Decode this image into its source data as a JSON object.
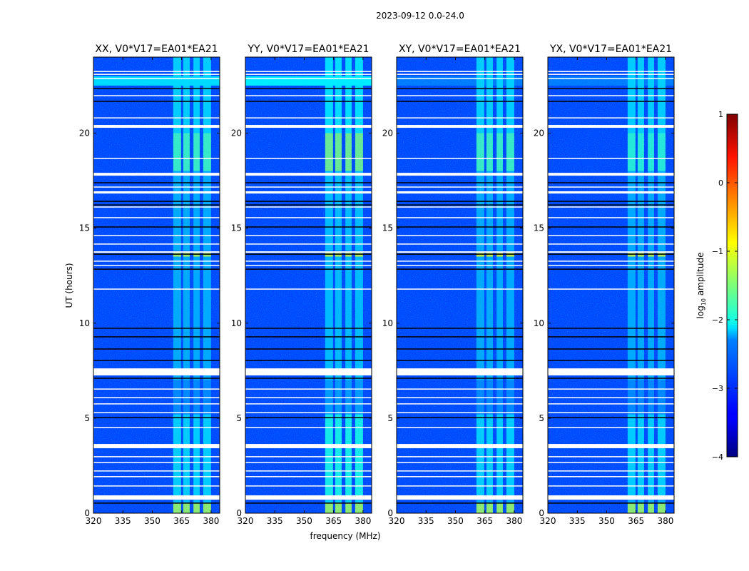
{
  "chart_data": {
    "type": "heatmap",
    "title": "2023-09-12 0.0-24.0",
    "xlabel": "frequency (MHz)",
    "ylabel": "UT (hours)",
    "xlim": [
      320,
      384.4
    ],
    "ylim": [
      0,
      24
    ],
    "xticks": [
      "320",
      "335",
      "350",
      "365",
      "380"
    ],
    "yticks": [
      "0",
      "5",
      "10",
      "15",
      "20"
    ],
    "colorbar": {
      "label": "log10 amplitude",
      "label_main": "log",
      "label_sub": "10",
      "label_rest": " amplitude",
      "range": [
        -4,
        1
      ],
      "ticks": [
        "1",
        "0",
        "−1",
        "−2",
        "−3",
        "−4"
      ],
      "colormap": "jet"
    },
    "background_level": -3.05,
    "signal_channels_mhz": [
      [
        360.7,
        364.7
      ],
      [
        365.8,
        369.1
      ],
      [
        371.0,
        374.2
      ],
      [
        376.0,
        380.0
      ]
    ],
    "flagged_rows_hours": [
      [
        23.22,
        23.27
      ],
      [
        23.07,
        23.12
      ],
      [
        22.85,
        22.9
      ],
      [
        21.95,
        22.0
      ],
      [
        20.78,
        20.83
      ],
      [
        18.64,
        18.69
      ],
      [
        17.14,
        17.19
      ],
      [
        16.09,
        16.14
      ],
      [
        15.53,
        15.58
      ],
      [
        14.59,
        14.64
      ],
      [
        14.14,
        14.19
      ],
      [
        13.24,
        13.29
      ],
      [
        13.02,
        13.07
      ],
      [
        11.77,
        11.82
      ],
      [
        6.51,
        6.56
      ],
      [
        6.06,
        6.11
      ],
      [
        5.73,
        5.78
      ],
      [
        5.27,
        5.32
      ],
      [
        4.49,
        4.54
      ],
      [
        2.95,
        3.0
      ],
      [
        2.65,
        2.7
      ],
      [
        2.2,
        2.25
      ],
      [
        1.9,
        1.95
      ],
      [
        1.41,
        1.46
      ],
      [
        20.28,
        20.43
      ],
      [
        17.76,
        17.91
      ],
      [
        16.82,
        16.94
      ],
      [
        7.25,
        7.62
      ],
      [
        3.42,
        3.64
      ],
      [
        0.71,
        0.94
      ],
      [
        13.7,
        13.78
      ]
    ],
    "dark_rows_hours": [
      22.34,
      21.67,
      17.39,
      16.41,
      16.22,
      15.06,
      13.63,
      12.84,
      9.73,
      9.28,
      8.64,
      8.04,
      7.1,
      5.03,
      0.53
    ],
    "panels": [
      {
        "title": "XX, V0*V17=EA01*EA21",
        "broadband_22_23h": -2.3,
        "signal_segments": [
          [
            0,
            0.55,
            -1.3
          ],
          [
            0.55,
            0.7,
            -2.4
          ],
          [
            0.94,
            5.2,
            -2.3
          ],
          [
            5.2,
            7.0,
            -2.7
          ],
          [
            7.0,
            13.5,
            -2.5
          ],
          [
            13.5,
            13.7,
            -1.2
          ],
          [
            13.8,
            18.0,
            -2.5
          ],
          [
            18.0,
            20.0,
            -1.8
          ],
          [
            20.0,
            24.0,
            -2.3
          ]
        ]
      },
      {
        "title": "YY, V0*V17=EA01*EA21",
        "broadband_22_23h": -2.2,
        "signal_segments": [
          [
            0,
            0.55,
            -1.3
          ],
          [
            0.55,
            0.7,
            -2.3
          ],
          [
            0.94,
            5.2,
            -2.0
          ],
          [
            5.2,
            7.0,
            -2.6
          ],
          [
            7.0,
            13.5,
            -2.4
          ],
          [
            13.5,
            13.7,
            -1.1
          ],
          [
            13.8,
            18.0,
            -2.4
          ],
          [
            18.0,
            20.0,
            -1.5
          ],
          [
            20.0,
            24.0,
            -2.2
          ]
        ]
      },
      {
        "title": "XY, V0*V17=EA01*EA21",
        "broadband_22_23h": -2.8,
        "signal_segments": [
          [
            0,
            0.55,
            -1.3
          ],
          [
            0.55,
            0.7,
            -2.5
          ],
          [
            0.94,
            5.2,
            -2.3
          ],
          [
            5.2,
            7.0,
            -2.7
          ],
          [
            7.0,
            13.5,
            -2.5
          ],
          [
            13.5,
            13.7,
            -1.0
          ],
          [
            13.8,
            18.0,
            -2.5
          ],
          [
            18.0,
            20.0,
            -1.8
          ],
          [
            20.0,
            24.0,
            -2.3
          ]
        ]
      },
      {
        "title": "YX, V0*V17=EA01*EA21",
        "broadband_22_23h": -2.8,
        "signal_segments": [
          [
            0,
            0.55,
            -1.3
          ],
          [
            0.55,
            0.7,
            -2.5
          ],
          [
            0.94,
            5.2,
            -2.3
          ],
          [
            5.2,
            7.0,
            -2.7
          ],
          [
            7.0,
            13.5,
            -2.5
          ],
          [
            13.5,
            13.7,
            -1.1
          ],
          [
            13.8,
            18.0,
            -2.5
          ],
          [
            18.0,
            20.0,
            -1.9
          ],
          [
            20.0,
            24.0,
            -2.3
          ]
        ]
      }
    ]
  }
}
